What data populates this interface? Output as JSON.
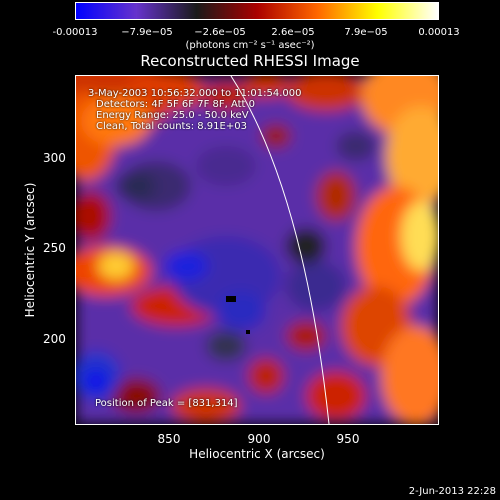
{
  "chart_data": {
    "type": "heatmap",
    "title": "Reconstructed RHESSI Image",
    "xlabel": "Heliocentric X (arcsec)",
    "ylabel": "Heliocentric Y (arcsec)",
    "xlim": [
      804,
      990
    ],
    "ylim": [
      144,
      348
    ],
    "x_ticks": [
      850,
      900,
      950
    ],
    "y_ticks": [
      200,
      250,
      300
    ],
    "colorbar": {
      "units": "(photons cm⁻² s⁻¹ asec⁻²)",
      "range": [
        -0.00013,
        0.00013
      ],
      "ticks": [
        -0.00013,
        -7.9e-05,
        -2.6e-05,
        2.6e-05,
        7.9e-05,
        0.00013
      ],
      "tick_labels": [
        "-0.00013",
        "−7.9e−05",
        "−2.6e−05",
        "2.6e−05",
        "7.9e−05",
        "0.00013"
      ],
      "colors": [
        "#0000ff",
        "#6633cc",
        "#1a1a1a",
        "#aa0000",
        "#ff6600",
        "#ffff00",
        "#ffffff"
      ]
    },
    "annotations": [
      "3-May-2003 10:56:32.000 to 11:01:54.000",
      "Detectors: 4F 5F 6F 7F 8F, Att 0",
      "Energy Range: 25.0 - 50.0 keV",
      "Clean, Total counts: 8.91E+03"
    ],
    "peak_label": "Position of Peak = [831,314]",
    "limb": "white curve (solar limb)",
    "timestamp": "2-Jun-2013 22:28"
  }
}
